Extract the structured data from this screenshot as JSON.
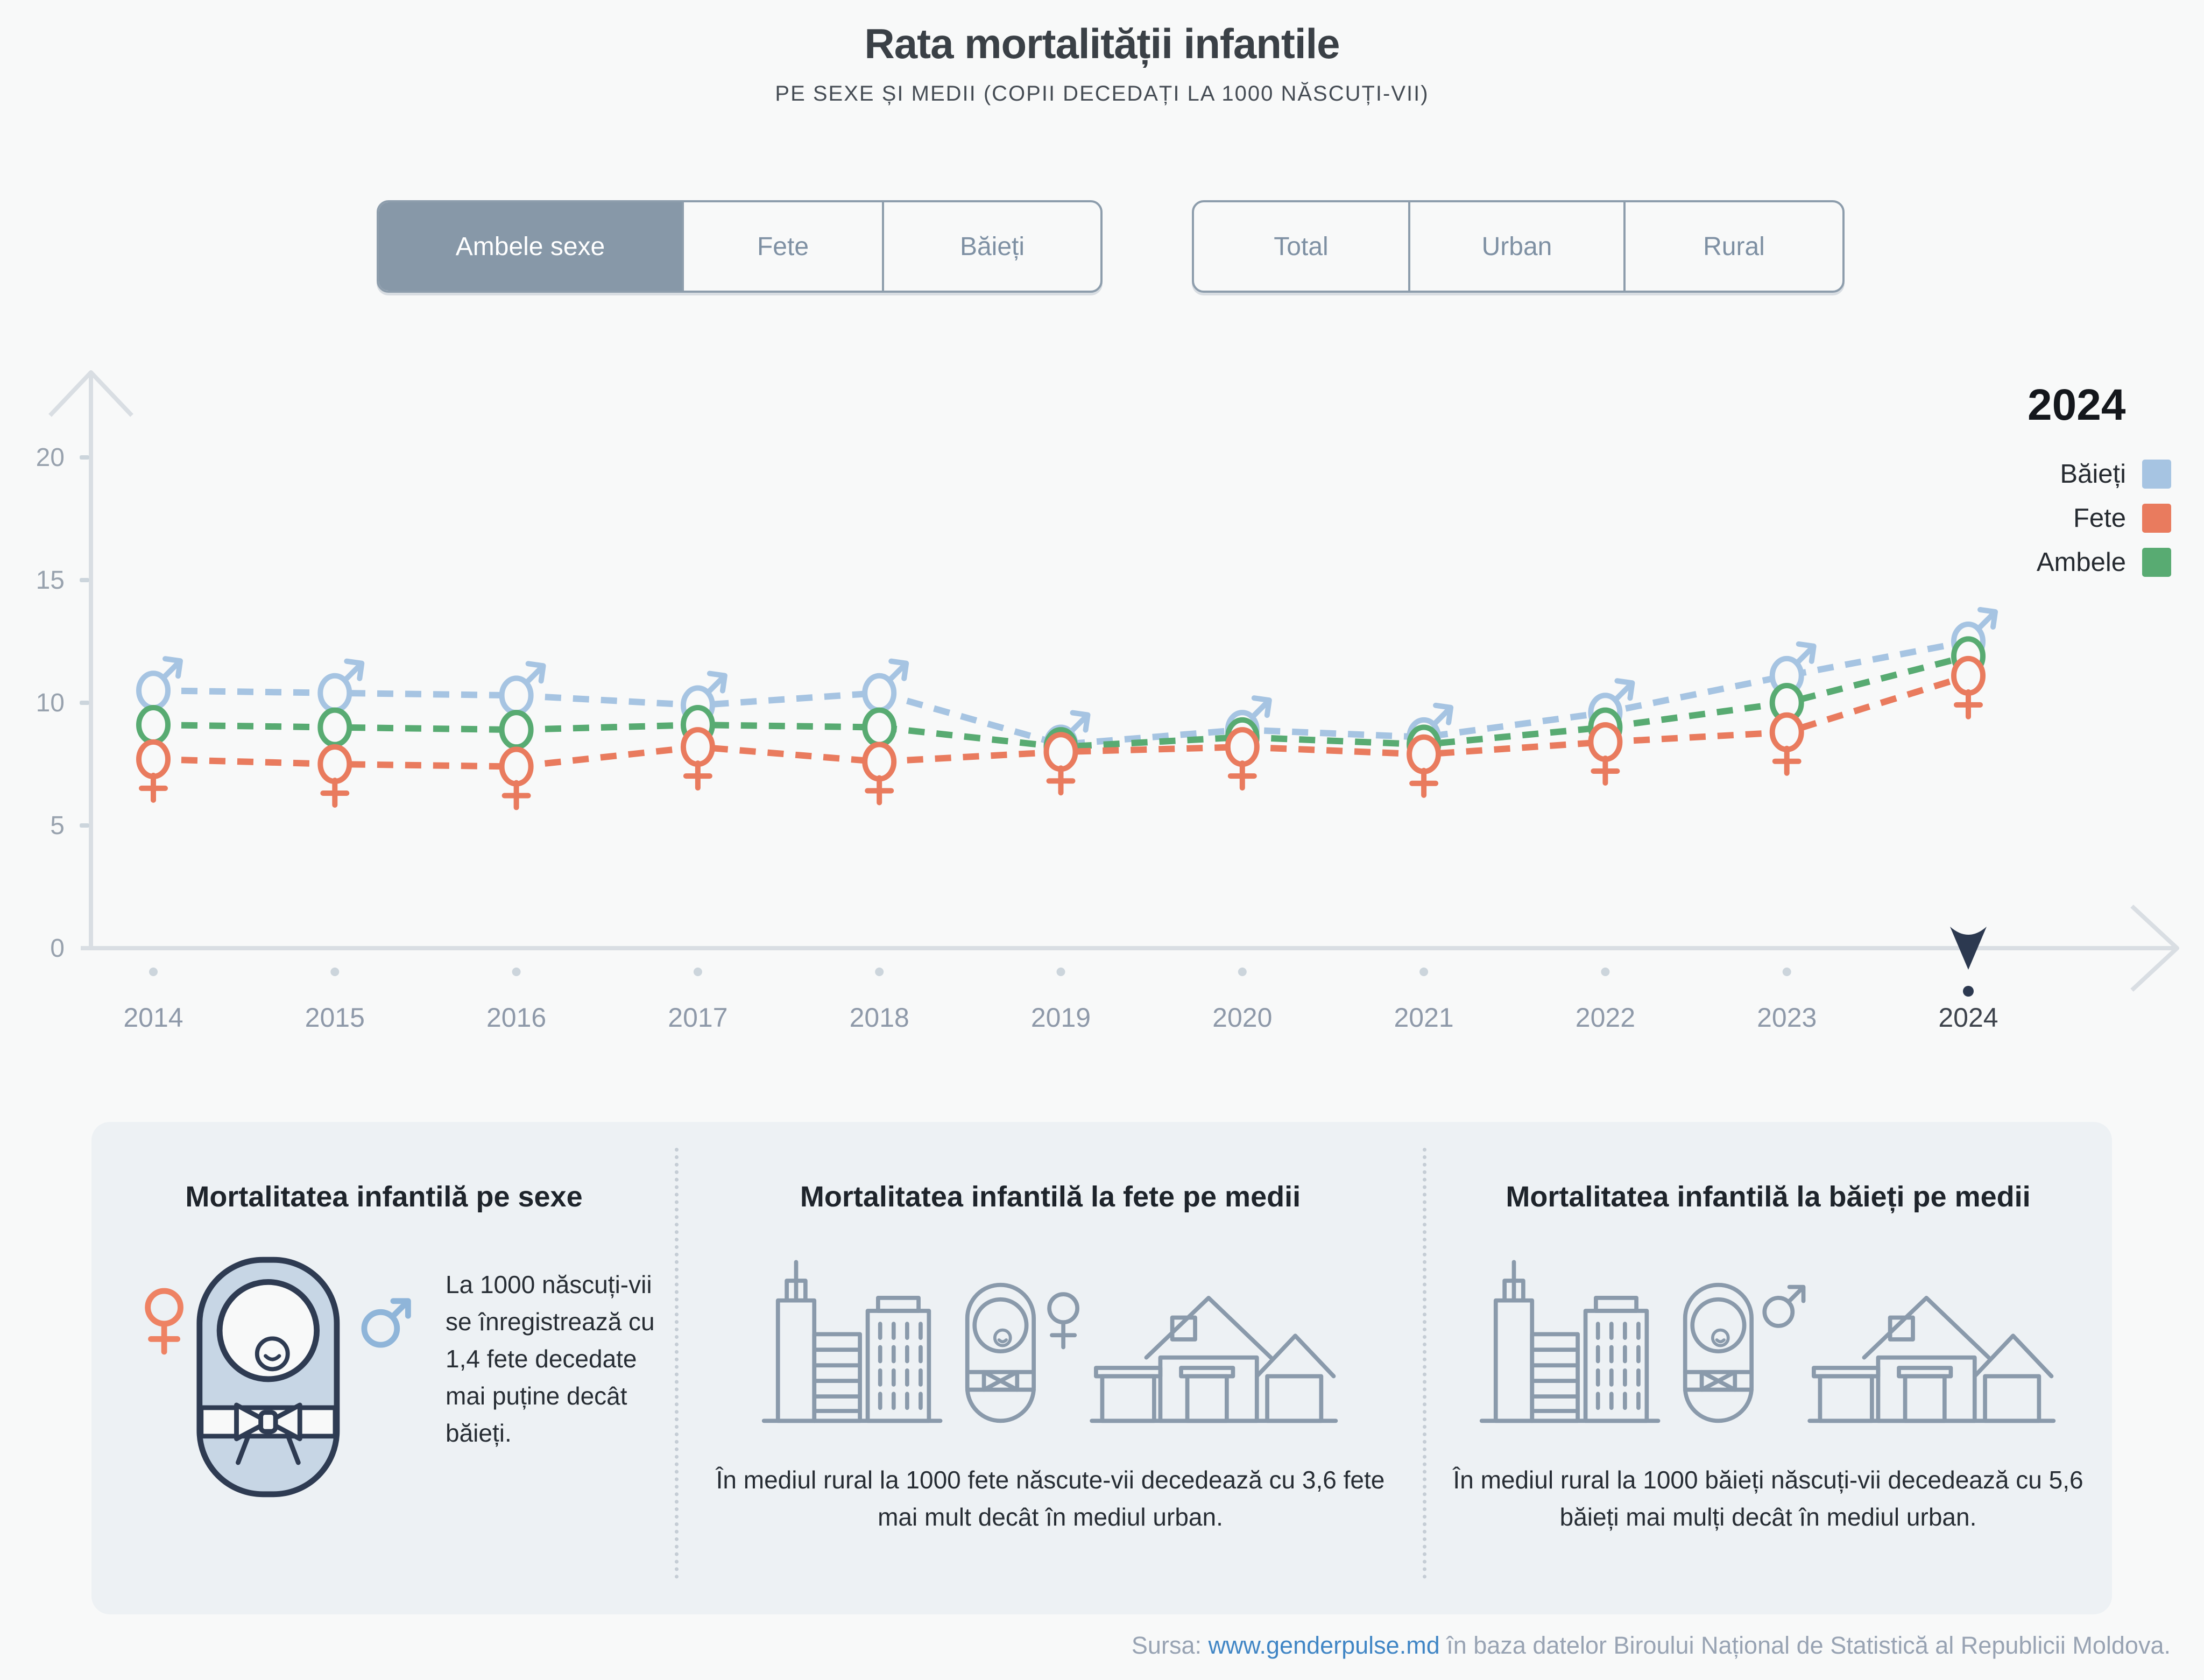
{
  "header": {
    "title": "Rata mortalității infantile",
    "subtitle": "PE SEXE ȘI MEDII (COPII DECEDAȚI LA 1000 NĂSCUȚI-VII)"
  },
  "filters": {
    "sex": {
      "options": [
        "Ambele sexe",
        "Fete",
        "Băieți"
      ],
      "selected": "Ambele sexe"
    },
    "medium": {
      "options": [
        "Total",
        "Urban",
        "Rural"
      ],
      "selected": ""
    }
  },
  "legend": {
    "year": "2024",
    "items": [
      {
        "label": "Băieți",
        "color": "#a6c4e2"
      },
      {
        "label": "Fete",
        "color": "#e97b5e"
      },
      {
        "label": "Ambele",
        "color": "#58ab72"
      }
    ]
  },
  "chart_data": {
    "type": "line",
    "title": "Rata mortalității infantile",
    "xlabel": "",
    "ylabel": "copii decedați la 1000 născuți-vii",
    "x": [
      2014,
      2015,
      2016,
      2017,
      2018,
      2019,
      2020,
      2021,
      2022,
      2023,
      2024
    ],
    "series": [
      {
        "name": "Băieți",
        "color": "#a6c4e2",
        "marker": "male",
        "values": [
          10.5,
          10.4,
          10.3,
          9.9,
          10.4,
          8.3,
          8.9,
          8.6,
          9.6,
          11.1,
          12.5
        ]
      },
      {
        "name": "Ambele",
        "color": "#58ab72",
        "marker": "circle",
        "values": [
          9.1,
          9.0,
          8.9,
          9.1,
          9.0,
          8.2,
          8.6,
          8.3,
          9.0,
          10.0,
          11.9
        ]
      },
      {
        "name": "Fete",
        "color": "#e97b5e",
        "marker": "female",
        "values": [
          7.7,
          7.5,
          7.4,
          8.2,
          7.6,
          8.0,
          8.2,
          7.9,
          8.4,
          8.8,
          11.1
        ]
      }
    ],
    "ylim": [
      0,
      20
    ],
    "yticks": [
      0,
      5,
      10,
      15,
      20
    ],
    "highlighted_year": 2024,
    "grid": false,
    "line_style": "dashed",
    "legend_position": "right"
  },
  "panels": [
    {
      "title": "Mortalitatea infantilă pe sexe",
      "text": "La 1000 născuți-vii se înregistrează cu 1,4 fete decedate mai puține decât băieți.",
      "icon": "baby-sexes-icon"
    },
    {
      "title": "Mortalitatea infantilă la fete pe medii",
      "text": "În mediul rural la 1000 fete născute-vii decedează cu 3,6 fete mai mult decât în mediul urban.",
      "icon": "urban-rural-girl-icon"
    },
    {
      "title": "Mortalitatea infantilă la băieți pe medii",
      "text": "În mediul rural la 1000 băieți născuți-vii decedează cu 5,6 băieți mai mulți decât în mediul urban.",
      "icon": "urban-rural-boy-icon"
    }
  ],
  "footer": {
    "prefix": "Sursa:",
    "link": "www.genderpulse.md",
    "suffix": "în baza datelor Biroului Național de Statistică al Republicii Moldova."
  },
  "colors": {
    "background": "#f8f9f9",
    "panel_background": "#edf1f4",
    "selected_button": "#8798a8",
    "button_border": "#8d9dac",
    "axis": "#d9dee3",
    "axis_dot": "#ccd5dc",
    "tick_label": "#98a2ae",
    "year_label": "#8e99a9",
    "highlighted_year_label": "#3d434c",
    "timeline_cursor": "#2c3950",
    "link": "#4186c5"
  }
}
